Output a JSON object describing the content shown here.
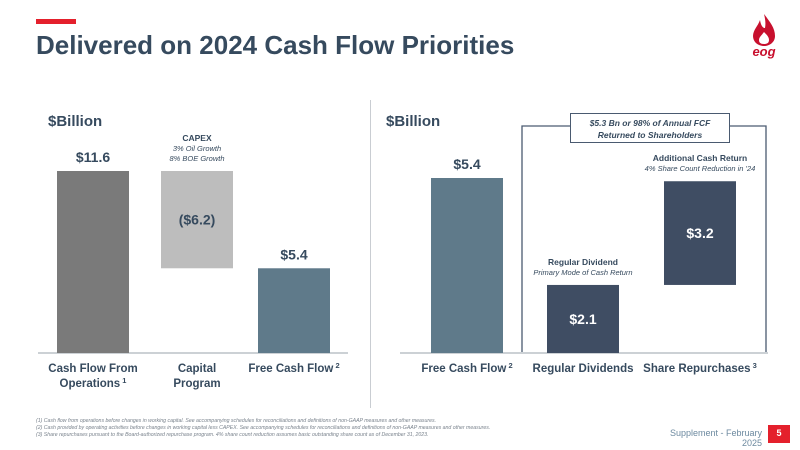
{
  "header": {
    "title": "Delivered on 2024 Cash Flow Priorities",
    "logo_text": "eog"
  },
  "colors": {
    "accent": "#e4202c",
    "title": "#364a5e",
    "gray_dark": "#7a7a7a",
    "gray_light": "#bdbdbd",
    "teal": "#5f7a8a",
    "navy": "#3f4d63"
  },
  "chart_data": [
    {
      "type": "bar",
      "subtype": "waterfall",
      "unit_label": "$Billion",
      "categories": [
        {
          "line1": "Cash Flow From",
          "line2": "Operations",
          "sup": "1"
        },
        {
          "line1": "Capital",
          "line2": "Program",
          "sup": ""
        },
        {
          "line1": "Free Cash Flow",
          "line2": "",
          "sup": "2"
        }
      ],
      "bars": [
        {
          "start": 0,
          "end": 11.6,
          "label": "$11.6",
          "color": "#7a7a7a",
          "label_pos": "above"
        },
        {
          "start": 5.4,
          "end": 11.6,
          "label": "($6.2)",
          "color": "#bdbdbd",
          "label_pos": "inside"
        },
        {
          "start": 0,
          "end": 5.4,
          "label": "$5.4",
          "color": "#5f7a8a",
          "label_pos": "above"
        }
      ],
      "ylim": [
        0,
        11.6
      ],
      "annotations": [
        {
          "bar": 1,
          "title": "CAPEX",
          "lines": [
            "3% Oil Growth",
            "8% BOE Growth"
          ]
        }
      ]
    },
    {
      "type": "bar",
      "subtype": "waterfall",
      "unit_label": "$Billion",
      "categories": [
        {
          "line1": "Free Cash Flow",
          "line2": "",
          "sup": "2"
        },
        {
          "line1": "Regular Dividends",
          "line2": "",
          "sup": ""
        },
        {
          "line1": "Share Repurchases",
          "line2": "",
          "sup": "3"
        }
      ],
      "bars": [
        {
          "start": 0,
          "end": 5.4,
          "label": "$5.4",
          "color": "#5f7a8a",
          "label_pos": "above"
        },
        {
          "start": 0,
          "end": 2.1,
          "label": "$2.1",
          "color": "#3f4d63",
          "label_pos": "inside"
        },
        {
          "start": 2.1,
          "end": 5.3,
          "label": "$3.2",
          "color": "#3f4d63",
          "label_pos": "inside"
        }
      ],
      "ylim": [
        0,
        5.4
      ],
      "annotations": [
        {
          "bar": 1,
          "title": "Regular Dividend",
          "lines": [
            "Primary Mode of Cash Return"
          ]
        },
        {
          "bar": 2,
          "title": "Additional Cash Return",
          "lines": [
            "4% Share Count Reduction in '24"
          ]
        }
      ],
      "callout": {
        "line1": "$5.3 Bn or 98% of Annual FCF",
        "line2": "Returned to Shareholders"
      }
    }
  ],
  "footnotes": [
    "(1)    Cash flow from operations before changes in working capital.  See accompanying schedules for reconciliations and definitions of non-GAAP measures and other measures.",
    "(2)    Cash provided by operating activities before changes in working capital less CAPEX. See accompanying schedules for reconciliations and definitions of non-GAAP measures and other measures.",
    "(3)    Share repurchases pursuant to the Board-authorized repurchase program. 4% share count reduction assumes basic outstanding share count as of December 31, 2023."
  ],
  "footer": {
    "supplement": "Supplement - February 2025",
    "page_number": "5"
  }
}
